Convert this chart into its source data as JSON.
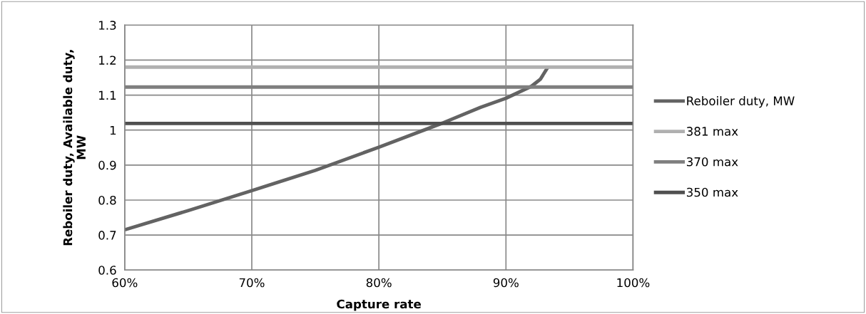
{
  "chart_data": {
    "type": "line",
    "xlabel": "Capture rate",
    "ylabel": "Reboiler duty, Available duty,\nMW",
    "xlim": [
      0.6,
      1.0
    ],
    "xticks": [
      {
        "value": 0.6,
        "label": "60%"
      },
      {
        "value": 0.7,
        "label": "70%"
      },
      {
        "value": 0.8,
        "label": "80%"
      },
      {
        "value": 0.9,
        "label": "90%"
      },
      {
        "value": 1.0,
        "label": "100%"
      }
    ],
    "ylim": [
      0.6,
      1.3
    ],
    "yticks": [
      0.6,
      0.7,
      0.8,
      0.9,
      1,
      1.1,
      1.2,
      1.3
    ],
    "grid": true,
    "legend": "right",
    "marker": "none",
    "line_style": "solid",
    "series": [
      {
        "name": "Reboiler duty, MW",
        "color": "#636363",
        "x": [
          0.6,
          0.65,
          0.7,
          0.75,
          0.8,
          0.85,
          0.88,
          0.9,
          0.92,
          0.927,
          0.933
        ],
        "values": [
          0.715,
          0.77,
          0.827,
          0.885,
          0.951,
          1.02,
          1.065,
          1.091,
          1.125,
          1.145,
          1.18
        ]
      },
      {
        "name": "381 max",
        "color": "#b0b0b0",
        "x": [
          0.6,
          1.0
        ],
        "values": [
          1.18,
          1.18
        ]
      },
      {
        "name": "370 max",
        "color": "#7f7f7f",
        "x": [
          0.6,
          1.0
        ],
        "values": [
          1.123,
          1.123
        ]
      },
      {
        "name": "350 max",
        "color": "#505050",
        "x": [
          0.6,
          1.0
        ],
        "values": [
          1.019,
          1.019
        ]
      }
    ]
  }
}
